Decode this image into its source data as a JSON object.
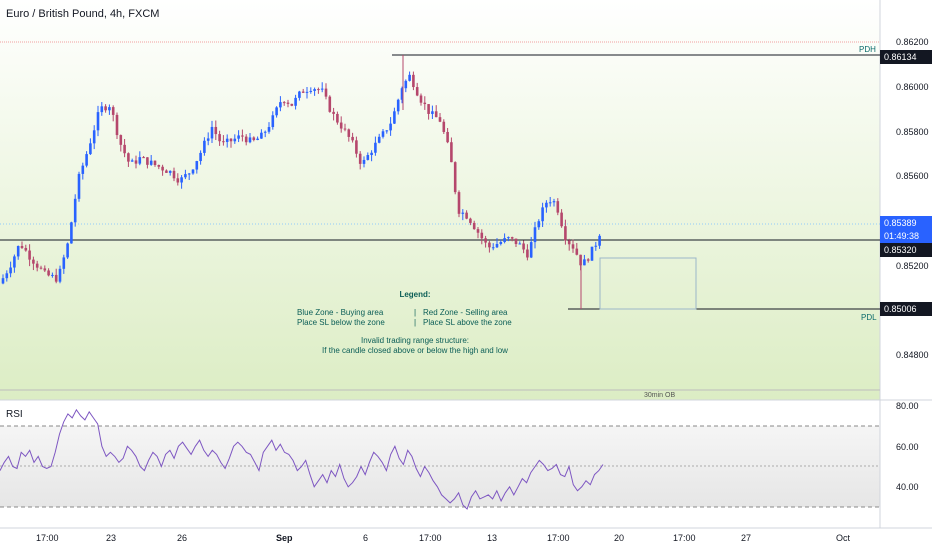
{
  "header": {
    "title": "Euro / British Pound, 4h, FXCM"
  },
  "price_axis": {
    "ticks": [
      "0.86200",
      "0.86000",
      "0.85800",
      "0.85600",
      "0.85200",
      "0.84800"
    ],
    "badges": {
      "pdh_price": "0.86134",
      "current_price": "0.85389",
      "countdown": "01:49:38",
      "line_price": "0.85320",
      "pdl_price": "0.85006"
    }
  },
  "levels": {
    "pdh_label": "PDH",
    "pdl_label": "PDL",
    "ob_label": "30min OB"
  },
  "legend": {
    "title": "Legend:",
    "blue_zone": "Blue Zone - Buying area",
    "blue_zone_sl": "Place SL below the zone",
    "red_zone": "Red Zone - Selling area",
    "red_zone_sl": "Place SL above the zone",
    "separator": "|",
    "invalid_title": "Invalid trading range structure:",
    "invalid_text": "If the candle closed above or below the high and low"
  },
  "rsi": {
    "label": "RSI",
    "ticks": [
      "80.00",
      "60.00",
      "40.00"
    ],
    "bands": {
      "upper": 70,
      "middle": 50,
      "lower": 30
    },
    "values": [
      50,
      48,
      46,
      50,
      53,
      56,
      54,
      55,
      52,
      50,
      49,
      55,
      57,
      56,
      58,
      56,
      55,
      52,
      50,
      51,
      51,
      49,
      50,
      54,
      57,
      60,
      62,
      65,
      68,
      70,
      72,
      72,
      74,
      73,
      71,
      72,
      74,
      75,
      76,
      76,
      74,
      72,
      75,
      77,
      76,
      75,
      73,
      74,
      72,
      72,
      70,
      68,
      65,
      62,
      60,
      58,
      56,
      55,
      54,
      52,
      50,
      49,
      48,
      52,
      55,
      58,
      56,
      55,
      52,
      50,
      53,
      56,
      58,
      55,
      52,
      50,
      48,
      53,
      56,
      58,
      60,
      57,
      54,
      52,
      55,
      58,
      61,
      64,
      62,
      60,
      57,
      55,
      52,
      50,
      48,
      50,
      53,
      56,
      58,
      60,
      62,
      60,
      57,
      55,
      58,
      60,
      62,
      64,
      62,
      60,
      57,
      55,
      52,
      53,
      56,
      58,
      60,
      62,
      65,
      63,
      60,
      58,
      56,
      54,
      52,
      50,
      48,
      46,
      44,
      42,
      40,
      42,
      45,
      47,
      46,
      48,
      50,
      47,
      44,
      41,
      39,
      41,
      43,
      45,
      47,
      48,
      50,
      52,
      55,
      53,
      50,
      48,
      46,
      48,
      50,
      52,
      54,
      56,
      58,
      57,
      55,
      53,
      50,
      48,
      46,
      45,
      44,
      42,
      40,
      38,
      36,
      34,
      33,
      32,
      31,
      30,
      29,
      32,
      34,
      36,
      38,
      37,
      36,
      35,
      36,
      38,
      37,
      36,
      35,
      34,
      36,
      38,
      40,
      42,
      44,
      46,
      48,
      50,
      52,
      54,
      53,
      52,
      51,
      50,
      49,
      48,
      47,
      46,
      45,
      44,
      42,
      40,
      38,
      39,
      42,
      44,
      46,
      48,
      50
    ],
    "visible_values": [
      48,
      52,
      55,
      50,
      49,
      57,
      55,
      58,
      52,
      55,
      50,
      49,
      50,
      57,
      66,
      72,
      76,
      74,
      78,
      75,
      73,
      77,
      74,
      71,
      60,
      55,
      57,
      55,
      52,
      54,
      60,
      58,
      55,
      50,
      48,
      53,
      57,
      55,
      50,
      56,
      58,
      54,
      60,
      62,
      59,
      56,
      60,
      63,
      58,
      55,
      58,
      56,
      52,
      49,
      54,
      60,
      62,
      60,
      57,
      56,
      52,
      48,
      57,
      60,
      63,
      58,
      61,
      57,
      56,
      53,
      48,
      50,
      53,
      46,
      40,
      43,
      46,
      42,
      48,
      45,
      51,
      44,
      40,
      42,
      45,
      50,
      46,
      52,
      57,
      55,
      52,
      48,
      56,
      60,
      54,
      51,
      58,
      55,
      49,
      45,
      50,
      47,
      43,
      40,
      36,
      34,
      32,
      34,
      37,
      31,
      29,
      35,
      38,
      34,
      35,
      36,
      34,
      38,
      33,
      37,
      40,
      36,
      40,
      44,
      42,
      47,
      50,
      53,
      51,
      48,
      49,
      51,
      46,
      45,
      50,
      41,
      38,
      40,
      43,
      41,
      46,
      48,
      51
    ]
  },
  "x_axis": {
    "ticks": [
      "17:00",
      "23",
      "26",
      "Sep",
      "6",
      "17:00",
      "13",
      "17:00",
      "20",
      "17:00",
      "27",
      "Oct"
    ]
  },
  "colors": {
    "up": "#2962ff",
    "down": "#b5476c",
    "bg_top": "#ffffff",
    "bg_bottom": "#dfefc7",
    "rsi_line": "#7e57c2",
    "accent": "#2962ff",
    "level_text": "#0b6b6b"
  }
}
